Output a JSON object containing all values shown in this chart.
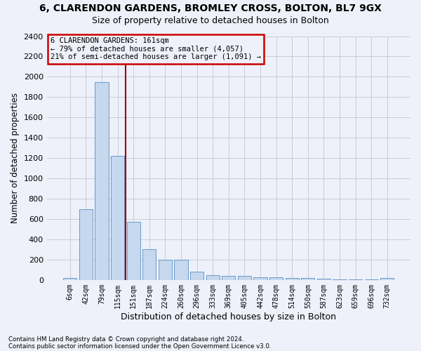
{
  "title1": "6, CLARENDON GARDENS, BROMLEY CROSS, BOLTON, BL7 9GX",
  "title2": "Size of property relative to detached houses in Bolton",
  "xlabel": "Distribution of detached houses by size in Bolton",
  "ylabel": "Number of detached properties",
  "footer1": "Contains HM Land Registry data © Crown copyright and database right 2024.",
  "footer2": "Contains public sector information licensed under the Open Government Licence v3.0.",
  "annotation_title": "6 CLARENDON GARDENS: 161sqm",
  "annotation_line1": "← 79% of detached houses are smaller (4,057)",
  "annotation_line2": "21% of semi-detached houses are larger (1,091) →",
  "bar_color": "#c5d8ee",
  "bar_edge_color": "#5b8fc0",
  "vline_color": "#990000",
  "annotation_box_edgecolor": "#cc0000",
  "grid_color": "#c8ccd8",
  "background_color": "#eef1fa",
  "categories": [
    "6sqm",
    "42sqm",
    "79sqm",
    "115sqm",
    "151sqm",
    "187sqm",
    "224sqm",
    "260sqm",
    "296sqm",
    "333sqm",
    "369sqm",
    "405sqm",
    "442sqm",
    "478sqm",
    "514sqm",
    "550sqm",
    "587sqm",
    "623sqm",
    "659sqm",
    "696sqm",
    "732sqm"
  ],
  "values": [
    18,
    700,
    1950,
    1225,
    570,
    305,
    200,
    200,
    80,
    50,
    42,
    38,
    25,
    25,
    22,
    20,
    15,
    5,
    5,
    5,
    22
  ],
  "ylim": [
    0,
    2400
  ],
  "yticks": [
    0,
    200,
    400,
    600,
    800,
    1000,
    1200,
    1400,
    1600,
    1800,
    2000,
    2200,
    2400
  ],
  "vline_bin_index": 3,
  "figsize": [
    6.0,
    5.0
  ],
  "dpi": 100
}
